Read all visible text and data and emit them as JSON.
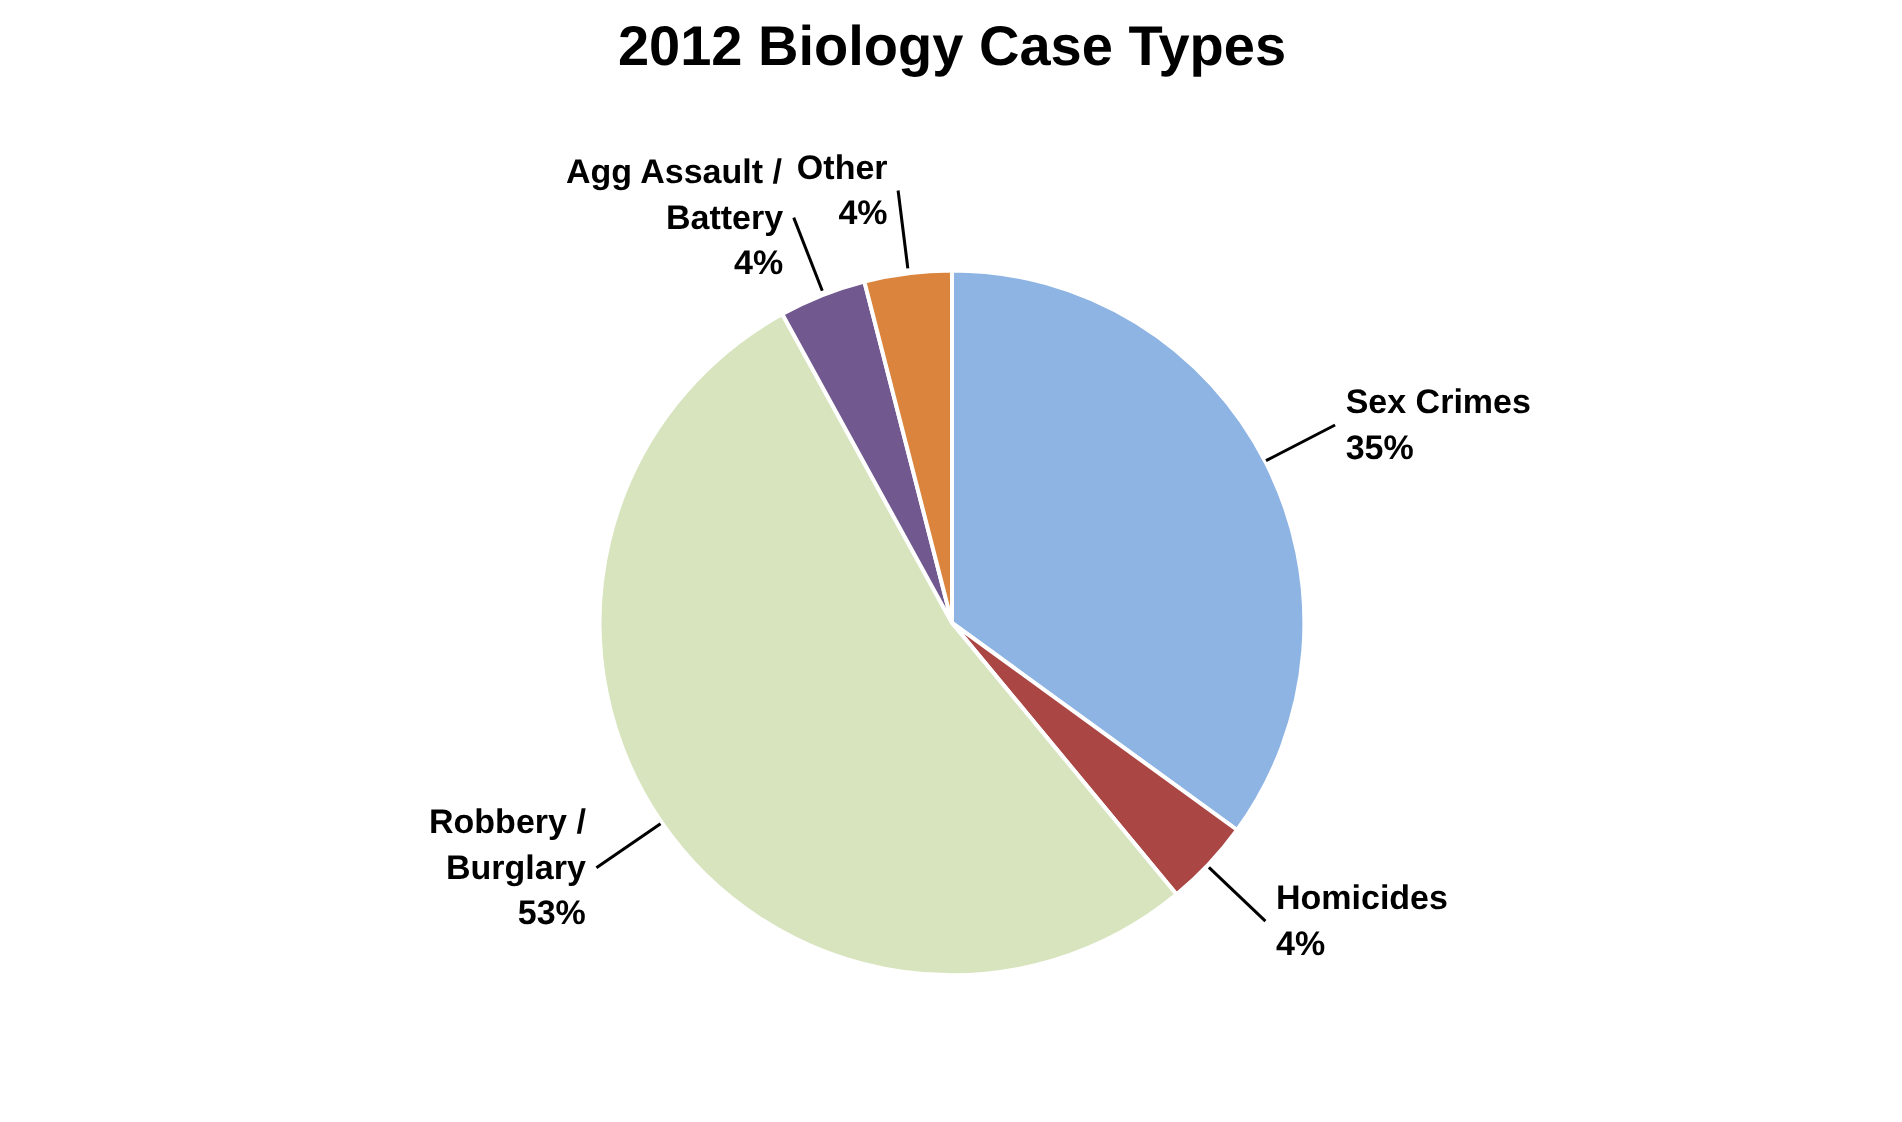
{
  "chart_data": {
    "type": "pie",
    "title": "2012 Biology Case Types",
    "categories": [
      "Sex Crimes",
      "Homicides",
      "Robbery / Burglary",
      "Agg Assault / Battery",
      "Other"
    ],
    "values": [
      35,
      4,
      53,
      4,
      4
    ],
    "value_labels": [
      "35%",
      "4%",
      "53%",
      "4%",
      "4%"
    ],
    "colors": [
      "#8eb4e3",
      "#aa4643",
      "#d7e4bd",
      "#71588f",
      "#db843d"
    ]
  }
}
